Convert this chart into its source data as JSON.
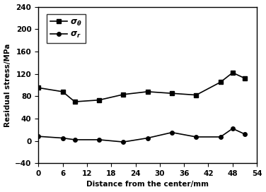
{
  "x": [
    0,
    6,
    9,
    15,
    21,
    27,
    33,
    39,
    45,
    48,
    51
  ],
  "sigma_theta": [
    95,
    88,
    70,
    73,
    83,
    88,
    85,
    82,
    105,
    122,
    112
  ],
  "sigma_r": [
    8,
    5,
    2,
    2,
    -2,
    5,
    15,
    7,
    7,
    22,
    12
  ],
  "xlabel": "Distance from the center/mm",
  "ylabel": "Residual stress/MPa",
  "legend_theta": "$\\sigma_\\theta$",
  "legend_r": "$\\sigma_r$",
  "xlim": [
    0,
    54
  ],
  "ylim": [
    -40,
    240
  ],
  "xticks": [
    0,
    6,
    12,
    18,
    24,
    30,
    36,
    42,
    48,
    54
  ],
  "yticks": [
    -40,
    0,
    40,
    80,
    120,
    160,
    200,
    240
  ],
  "line_color": "#000000",
  "background_color": "#ffffff",
  "label_fontsize": 7.5,
  "tick_fontsize": 7.5,
  "legend_fontsize": 8.5
}
